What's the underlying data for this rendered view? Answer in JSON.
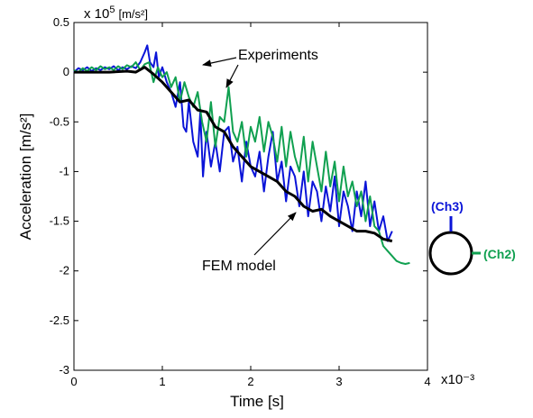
{
  "chart_data": {
    "type": "line",
    "title": "",
    "xlabel": "Time [s]",
    "ylabel": "Acceleration [m/s²]",
    "x_multiplier": "x10⁻³",
    "y_multiplier_base": "x 10",
    "y_multiplier_exp": "5",
    "y_multiplier_unit": "[m/s²]",
    "xlim": [
      0,
      4
    ],
    "ylim": [
      -3,
      0.5
    ],
    "xticks": [
      0,
      1,
      2,
      3,
      4
    ],
    "yticks": [
      -3,
      -2.5,
      -2,
      -1.5,
      -1,
      -0.5,
      0,
      0.5
    ],
    "xtick_labels": [
      "0",
      "1",
      "2",
      "3",
      "4"
    ],
    "ytick_labels": [
      "-3",
      "-2.5",
      "-2",
      "-1.5",
      "-1",
      "-0.5",
      "0",
      "0.5"
    ],
    "grid": false,
    "annotations": {
      "experiments": "Experiments",
      "fem": "FEM model",
      "ch3": "(Ch3)",
      "ch2": "(Ch2)"
    },
    "colors": {
      "ch3": "#0a14d8",
      "ch2": "#10a050",
      "fem": "#000000"
    },
    "series": [
      {
        "key": "ch3",
        "x": [
          0,
          0.05,
          0.1,
          0.15,
          0.2,
          0.25,
          0.3,
          0.35,
          0.4,
          0.45,
          0.5,
          0.55,
          0.6,
          0.65,
          0.7,
          0.75,
          0.8,
          0.83,
          0.86,
          0.9,
          0.93,
          0.96,
          1.0,
          1.05,
          1.1,
          1.15,
          1.2,
          1.24,
          1.27,
          1.3,
          1.35,
          1.4,
          1.43,
          1.46,
          1.5,
          1.55,
          1.6,
          1.65,
          1.7,
          1.75,
          1.8,
          1.85,
          1.9,
          1.95,
          2.0,
          2.05,
          2.1,
          2.15,
          2.2,
          2.25,
          2.3,
          2.35,
          2.4,
          2.45,
          2.5,
          2.55,
          2.6,
          2.65,
          2.7,
          2.75,
          2.8,
          2.85,
          2.9,
          2.95,
          3.0,
          3.05,
          3.1,
          3.15,
          3.2,
          3.25,
          3.3,
          3.35,
          3.4,
          3.45,
          3.5,
          3.55,
          3.6
        ],
        "y": [
          0,
          0.04,
          0.02,
          0.05,
          0.01,
          0.04,
          0.02,
          0.05,
          0.03,
          0.06,
          0.02,
          0.05,
          0.03,
          0.06,
          0.04,
          0.1,
          0.2,
          0.27,
          0.1,
          0.05,
          0.2,
          -0.05,
          0.05,
          -0.1,
          -0.2,
          -0.35,
          -0.1,
          -0.55,
          -0.6,
          -0.3,
          -0.7,
          -0.85,
          -0.4,
          -1.05,
          -0.6,
          -0.95,
          -0.7,
          -1.0,
          -0.6,
          -0.55,
          -0.9,
          -0.75,
          -1.1,
          -0.7,
          -0.95,
          -1.05,
          -0.8,
          -1.2,
          -0.85,
          -0.6,
          -1.1,
          -0.9,
          -1.3,
          -0.95,
          -1.05,
          -1.35,
          -1.0,
          -1.45,
          -1.1,
          -1.2,
          -1.5,
          -1.15,
          -1.4,
          -1.05,
          -1.55,
          -1.2,
          -1.35,
          -1.6,
          -1.2,
          -1.45,
          -1.1,
          -1.55,
          -1.3,
          -1.6,
          -1.45,
          -1.7,
          -1.6
        ]
      },
      {
        "key": "ch2",
        "x": [
          0,
          0.05,
          0.1,
          0.15,
          0.2,
          0.25,
          0.3,
          0.35,
          0.4,
          0.45,
          0.5,
          0.55,
          0.6,
          0.65,
          0.7,
          0.75,
          0.8,
          0.85,
          0.9,
          0.95,
          1.0,
          1.05,
          1.1,
          1.15,
          1.2,
          1.25,
          1.3,
          1.35,
          1.4,
          1.45,
          1.5,
          1.55,
          1.6,
          1.65,
          1.7,
          1.75,
          1.8,
          1.85,
          1.9,
          1.95,
          2.0,
          2.05,
          2.1,
          2.15,
          2.2,
          2.25,
          2.3,
          2.35,
          2.4,
          2.45,
          2.5,
          2.55,
          2.6,
          2.65,
          2.7,
          2.75,
          2.8,
          2.85,
          2.9,
          2.95,
          3.0,
          3.05,
          3.1,
          3.15,
          3.2,
          3.25,
          3.3,
          3.35,
          3.4,
          3.45,
          3.5,
          3.55,
          3.6,
          3.65,
          3.7,
          3.75,
          3.8
        ],
        "y": [
          0.02,
          0,
          0.04,
          0.01,
          0.05,
          0.02,
          0.06,
          0.03,
          0.05,
          0.02,
          0.06,
          0.03,
          0.07,
          0.05,
          0.1,
          0.02,
          0.08,
          0.1,
          -0.1,
          0.05,
          -0.05,
          0.0,
          -0.15,
          -0.05,
          -0.3,
          -0.1,
          -0.25,
          -0.35,
          -0.2,
          -0.5,
          -0.7,
          -0.3,
          -0.75,
          -0.45,
          -0.5,
          -0.15,
          -0.6,
          -0.7,
          -0.5,
          -0.85,
          -0.55,
          -0.7,
          -0.45,
          -0.8,
          -0.5,
          -0.65,
          -0.9,
          -0.55,
          -0.95,
          -0.6,
          -0.85,
          -1.0,
          -0.65,
          -1.1,
          -0.7,
          -0.95,
          -1.2,
          -0.8,
          -1.15,
          -0.9,
          -1.3,
          -0.95,
          -1.25,
          -1.1,
          -1.35,
          -1.2,
          -1.5,
          -1.25,
          -1.55,
          -1.6,
          -1.75,
          -1.8,
          -1.85,
          -1.9,
          -1.92,
          -1.93,
          -1.92
        ]
      },
      {
        "key": "fem",
        "x": [
          0,
          0.2,
          0.4,
          0.6,
          0.7,
          0.8,
          0.9,
          1.0,
          1.1,
          1.2,
          1.3,
          1.4,
          1.5,
          1.6,
          1.7,
          1.8,
          1.9,
          2.0,
          2.1,
          2.2,
          2.3,
          2.4,
          2.5,
          2.6,
          2.7,
          2.8,
          2.9,
          3.0,
          3.1,
          3.2,
          3.3,
          3.4,
          3.5,
          3.6
        ],
        "y": [
          0,
          0,
          0,
          0.01,
          0.0,
          0.05,
          -0.02,
          -0.1,
          -0.2,
          -0.3,
          -0.28,
          -0.38,
          -0.4,
          -0.55,
          -0.6,
          -0.75,
          -0.85,
          -0.95,
          -1.0,
          -1.05,
          -1.1,
          -1.2,
          -1.25,
          -1.35,
          -1.4,
          -1.38,
          -1.45,
          -1.5,
          -1.55,
          -1.6,
          -1.6,
          -1.62,
          -1.68,
          -1.7
        ]
      }
    ]
  }
}
